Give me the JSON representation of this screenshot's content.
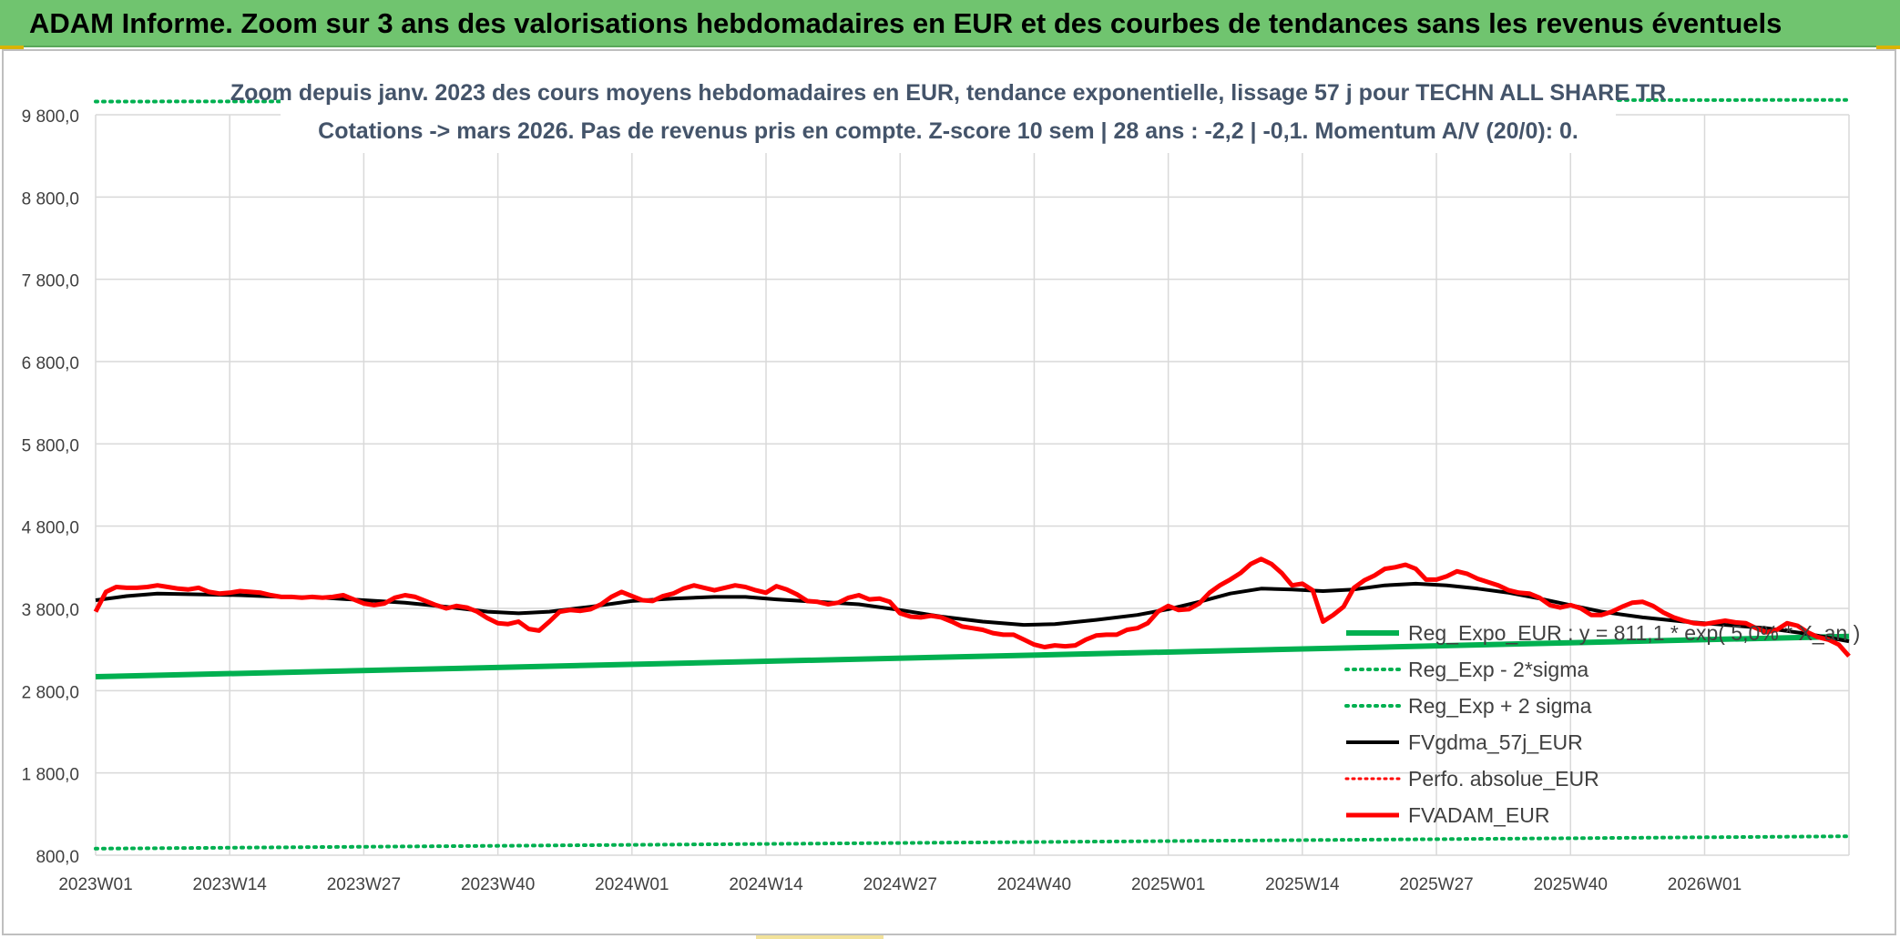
{
  "header": {
    "title": "ADAM Informe. Zoom sur 3 ans des valorisations hebdomadaires en EUR et des courbes de tendances sans les revenus éventuels"
  },
  "chart_data": {
    "type": "line",
    "title_line1": "Zoom depuis janv. 2023 des cours moyens hebdomadaires en EUR, tendance exponentielle, lissage 57 j pour TECHN ALL SHARE TR",
    "title_line2": "Cotations -> mars 2026. Pas de revenus pris en compte. Z-score 10 sem | 28 ans : -2,2 | -0,1. Momentum A/V (20/0): 0.",
    "ylim": [
      800,
      9800
    ],
    "y_ticks": [
      800,
      1800,
      2800,
      3800,
      4800,
      5800,
      6800,
      7800,
      8800,
      9800
    ],
    "y_tick_labels": [
      "800,0",
      "1 800,0",
      "2 800,0",
      "3 800,0",
      "4 800,0",
      "5 800,0",
      "6 800,0",
      "7 800,0",
      "8 800,0",
      "9 800,0"
    ],
    "x_tick_labels": [
      "2023W01",
      "2023W14",
      "2023W27",
      "2023W40",
      "2024W01",
      "2024W14",
      "2024W27",
      "2024W40",
      "2025W01",
      "2025W14",
      "2025W27",
      "2025W40",
      "2026W01"
    ],
    "x_tick_weeks": [
      0,
      13,
      26,
      39,
      52,
      65,
      78,
      91,
      104,
      117,
      130,
      143,
      156
    ],
    "x_range_weeks": [
      0,
      170
    ],
    "grid": true,
    "legend_position": "bottom-right",
    "colors": {
      "regexpo": "#00b050",
      "sigma": "#00b050",
      "fvgdma": "#000000",
      "perfo": "#ff0000",
      "fvadam": "#ff0000",
      "grid": "#d9d9d9",
      "banner": "#70c46f"
    },
    "series": [
      {
        "name": "Reg_Expo_EUR : y = 811,1 * exp( 5,0% * X_an )",
        "key": "regexpo",
        "style": "solid-thick",
        "points": [
          [
            0,
            2970
          ],
          [
            170,
            3460
          ]
        ]
      },
      {
        "name": "Reg_Exp - 2*sigma",
        "key": "minus_sigma",
        "style": "dotted",
        "points": [
          [
            0,
            880
          ],
          [
            170,
            1030
          ]
        ]
      },
      {
        "name": "Reg_Exp + 2 sigma",
        "key": "plus_sigma",
        "style": "dotted",
        "points": [
          [
            0,
            9960
          ],
          [
            170,
            9980
          ]
        ]
      },
      {
        "name": "FVgdma_57j_EUR",
        "key": "fvgdma",
        "style": "solid",
        "points": [
          [
            0,
            3900
          ],
          [
            3,
            3950
          ],
          [
            6,
            3980
          ],
          [
            10,
            3970
          ],
          [
            14,
            3960
          ],
          [
            18,
            3940
          ],
          [
            22,
            3930
          ],
          [
            26,
            3900
          ],
          [
            30,
            3870
          ],
          [
            34,
            3820
          ],
          [
            38,
            3760
          ],
          [
            41,
            3740
          ],
          [
            44,
            3760
          ],
          [
            48,
            3820
          ],
          [
            52,
            3890
          ],
          [
            56,
            3920
          ],
          [
            60,
            3940
          ],
          [
            63,
            3940
          ],
          [
            66,
            3910
          ],
          [
            70,
            3880
          ],
          [
            74,
            3850
          ],
          [
            78,
            3780
          ],
          [
            82,
            3700
          ],
          [
            86,
            3640
          ],
          [
            90,
            3600
          ],
          [
            93,
            3610
          ],
          [
            97,
            3660
          ],
          [
            101,
            3720
          ],
          [
            104,
            3790
          ],
          [
            107,
            3880
          ],
          [
            110,
            3980
          ],
          [
            113,
            4040
          ],
          [
            116,
            4030
          ],
          [
            119,
            4010
          ],
          [
            122,
            4030
          ],
          [
            125,
            4080
          ],
          [
            128,
            4100
          ],
          [
            131,
            4080
          ],
          [
            134,
            4040
          ],
          [
            137,
            3990
          ],
          [
            140,
            3920
          ],
          [
            143,
            3840
          ],
          [
            146,
            3760
          ],
          [
            150,
            3690
          ],
          [
            154,
            3640
          ],
          [
            158,
            3600
          ],
          [
            162,
            3560
          ],
          [
            166,
            3490
          ],
          [
            170,
            3400
          ]
        ]
      },
      {
        "name": "Perfo. absolue_EUR",
        "key": "perfo",
        "style": "dotted",
        "points": []
      },
      {
        "name": "FVADAM_EUR",
        "key": "fvadam",
        "style": "solid-thick",
        "points": [
          [
            0,
            3760
          ],
          [
            1,
            4000
          ],
          [
            2,
            4060
          ],
          [
            3,
            4050
          ],
          [
            4,
            4050
          ],
          [
            5,
            4060
          ],
          [
            6,
            4080
          ],
          [
            7,
            4060
          ],
          [
            8,
            4040
          ],
          [
            9,
            4030
          ],
          [
            10,
            4050
          ],
          [
            11,
            4000
          ],
          [
            12,
            3980
          ],
          [
            13,
            3990
          ],
          [
            14,
            4010
          ],
          [
            15,
            4000
          ],
          [
            16,
            3990
          ],
          [
            17,
            3960
          ],
          [
            18,
            3940
          ],
          [
            19,
            3940
          ],
          [
            20,
            3930
          ],
          [
            21,
            3940
          ],
          [
            22,
            3930
          ],
          [
            23,
            3940
          ],
          [
            24,
            3960
          ],
          [
            25,
            3910
          ],
          [
            26,
            3860
          ],
          [
            27,
            3840
          ],
          [
            28,
            3860
          ],
          [
            29,
            3930
          ],
          [
            30,
            3960
          ],
          [
            31,
            3940
          ],
          [
            32,
            3890
          ],
          [
            33,
            3840
          ],
          [
            34,
            3800
          ],
          [
            35,
            3830
          ],
          [
            36,
            3810
          ],
          [
            37,
            3760
          ],
          [
            38,
            3680
          ],
          [
            39,
            3620
          ],
          [
            40,
            3610
          ],
          [
            41,
            3640
          ],
          [
            42,
            3550
          ],
          [
            43,
            3530
          ],
          [
            44,
            3640
          ],
          [
            45,
            3760
          ],
          [
            46,
            3780
          ],
          [
            47,
            3770
          ],
          [
            48,
            3790
          ],
          [
            49,
            3850
          ],
          [
            50,
            3940
          ],
          [
            51,
            4000
          ],
          [
            52,
            3950
          ],
          [
            53,
            3900
          ],
          [
            54,
            3890
          ],
          [
            55,
            3950
          ],
          [
            56,
            3980
          ],
          [
            57,
            4040
          ],
          [
            58,
            4080
          ],
          [
            59,
            4050
          ],
          [
            60,
            4020
          ],
          [
            61,
            4050
          ],
          [
            62,
            4080
          ],
          [
            63,
            4060
          ],
          [
            64,
            4020
          ],
          [
            65,
            3990
          ],
          [
            66,
            4070
          ],
          [
            67,
            4030
          ],
          [
            68,
            3970
          ],
          [
            69,
            3890
          ],
          [
            70,
            3880
          ],
          [
            71,
            3850
          ],
          [
            72,
            3870
          ],
          [
            73,
            3930
          ],
          [
            74,
            3960
          ],
          [
            75,
            3910
          ],
          [
            76,
            3920
          ],
          [
            77,
            3880
          ],
          [
            78,
            3740
          ],
          [
            79,
            3700
          ],
          [
            80,
            3690
          ],
          [
            81,
            3710
          ],
          [
            82,
            3690
          ],
          [
            83,
            3640
          ],
          [
            84,
            3580
          ],
          [
            85,
            3560
          ],
          [
            86,
            3540
          ],
          [
            87,
            3500
          ],
          [
            88,
            3480
          ],
          [
            89,
            3480
          ],
          [
            90,
            3420
          ],
          [
            91,
            3360
          ],
          [
            92,
            3330
          ],
          [
            93,
            3350
          ],
          [
            94,
            3340
          ],
          [
            95,
            3350
          ],
          [
            96,
            3420
          ],
          [
            97,
            3470
          ],
          [
            98,
            3480
          ],
          [
            99,
            3480
          ],
          [
            100,
            3540
          ],
          [
            101,
            3560
          ],
          [
            102,
            3620
          ],
          [
            103,
            3760
          ],
          [
            104,
            3830
          ],
          [
            105,
            3780
          ],
          [
            106,
            3790
          ],
          [
            107,
            3860
          ],
          [
            108,
            3990
          ],
          [
            109,
            4080
          ],
          [
            110,
            4150
          ],
          [
            111,
            4230
          ],
          [
            112,
            4340
          ],
          [
            113,
            4400
          ],
          [
            114,
            4340
          ],
          [
            115,
            4230
          ],
          [
            116,
            4080
          ],
          [
            117,
            4100
          ],
          [
            118,
            4020
          ],
          [
            119,
            3640
          ],
          [
            120,
            3720
          ],
          [
            121,
            3820
          ],
          [
            122,
            4050
          ],
          [
            123,
            4140
          ],
          [
            124,
            4200
          ],
          [
            125,
            4280
          ],
          [
            126,
            4300
          ],
          [
            127,
            4330
          ],
          [
            128,
            4280
          ],
          [
            129,
            4150
          ],
          [
            130,
            4150
          ],
          [
            131,
            4190
          ],
          [
            132,
            4250
          ],
          [
            133,
            4220
          ],
          [
            134,
            4160
          ],
          [
            135,
            4120
          ],
          [
            136,
            4080
          ],
          [
            137,
            4020
          ],
          [
            138,
            3990
          ],
          [
            139,
            3980
          ],
          [
            140,
            3930
          ],
          [
            141,
            3840
          ],
          [
            142,
            3810
          ],
          [
            143,
            3840
          ],
          [
            144,
            3800
          ],
          [
            145,
            3720
          ],
          [
            146,
            3720
          ],
          [
            147,
            3760
          ],
          [
            148,
            3820
          ],
          [
            149,
            3870
          ],
          [
            150,
            3880
          ],
          [
            151,
            3830
          ],
          [
            152,
            3750
          ],
          [
            153,
            3690
          ],
          [
            154,
            3650
          ],
          [
            155,
            3620
          ],
          [
            156,
            3610
          ],
          [
            157,
            3630
          ],
          [
            158,
            3650
          ],
          [
            159,
            3630
          ],
          [
            160,
            3620
          ],
          [
            161,
            3560
          ],
          [
            162,
            3510
          ],
          [
            163,
            3540
          ],
          [
            164,
            3620
          ],
          [
            165,
            3590
          ],
          [
            166,
            3510
          ],
          [
            167,
            3450
          ],
          [
            168,
            3420
          ],
          [
            169,
            3360
          ],
          [
            170,
            3220
          ]
        ]
      }
    ]
  }
}
